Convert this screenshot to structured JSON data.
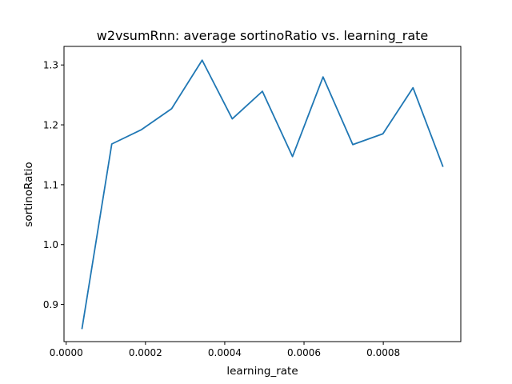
{
  "chart_data": {
    "type": "line",
    "title": "w2vsumRnn: average sortinoRatio vs. learning_rate",
    "xlabel": "learning_rate",
    "ylabel": "sortinoRatio",
    "xlim": [
      -5.5e-06,
      0.0009955
    ],
    "ylim": [
      0.838,
      1.331
    ],
    "xticks": [
      0.0,
      0.0002,
      0.0004,
      0.0006,
      0.0008
    ],
    "xtick_labels": [
      "0.0000",
      "0.0002",
      "0.0004",
      "0.0006",
      "0.0008"
    ],
    "yticks": [
      0.9,
      1.0,
      1.1,
      1.2,
      1.3
    ],
    "ytick_labels": [
      "0.9",
      "1.0",
      "1.1",
      "1.2",
      "1.3"
    ],
    "grid": false,
    "line_color": "#1f77b4",
    "series": [
      {
        "x": [
          4e-05,
          0.000115,
          0.00019,
          0.000266,
          0.000343,
          0.000419,
          0.000495,
          0.000571,
          0.000648,
          0.000723,
          0.000799,
          0.000875,
          0.00095
        ],
        "y": [
          0.86,
          1.168,
          1.192,
          1.227,
          1.308,
          1.21,
          1.256,
          1.147,
          1.28,
          1.167,
          1.185,
          1.262,
          1.131
        ]
      }
    ]
  }
}
